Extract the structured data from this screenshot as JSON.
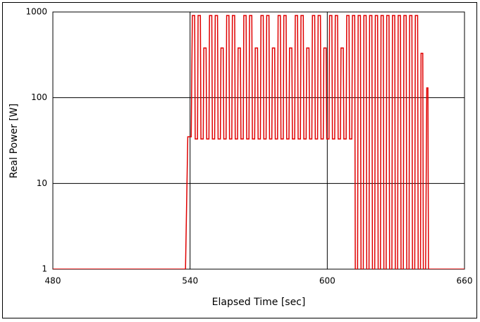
{
  "chart_data": {
    "type": "line",
    "xlabel": "Elapsed Time [sec]",
    "ylabel": "Real Power [W]",
    "xlim": [
      480,
      660
    ],
    "xticks": [
      480,
      540,
      600,
      660
    ],
    "ylim": [
      1,
      1000
    ],
    "yticks": [
      1,
      10,
      100,
      1000
    ],
    "ylog": true,
    "grid": true,
    "series": [
      {
        "color": "#e00000",
        "x": [
          480,
          500,
          520,
          538,
          539,
          540.5,
          541,
          542,
          542.25,
          543.25,
          543.5,
          544.5,
          544.75,
          545.75,
          546,
          547,
          547.25,
          548.25,
          548.5,
          549.5,
          549.75,
          550.75,
          551,
          552,
          552.25,
          553.25,
          553.5,
          554.5,
          554.75,
          555.75,
          556,
          557,
          557.25,
          558.25,
          558.5,
          559.5,
          559.75,
          560.75,
          561,
          562,
          562.25,
          563.25,
          563.5,
          564.5,
          564.75,
          565.75,
          566,
          567,
          567.25,
          568.25,
          568.5,
          569.5,
          569.75,
          570.75,
          571,
          572,
          572.25,
          573.25,
          573.5,
          574.5,
          574.75,
          575.75,
          576,
          577,
          577.25,
          578.25,
          578.5,
          579.5,
          579.75,
          580.75,
          581,
          582,
          582.25,
          583.25,
          583.5,
          584.5,
          584.75,
          585.75,
          586,
          587,
          587.25,
          588.25,
          588.5,
          589.5,
          589.75,
          590.75,
          591,
          592,
          592.25,
          593.25,
          593.5,
          594.5,
          594.75,
          595.75,
          596,
          597,
          597.25,
          598.25,
          598.5,
          599.5,
          599.75,
          600.75,
          601,
          602,
          602.25,
          603.25,
          603.5,
          604.5,
          604.75,
          605.75,
          606,
          607,
          607.25,
          608.25,
          608.5,
          609.5,
          609.75,
          610.75,
          611,
          612,
          612.25,
          613.25,
          613.5,
          614.5,
          614.75,
          615.75,
          616,
          617,
          617.25,
          618.25,
          618.5,
          619.5,
          619.75,
          620.75,
          621,
          622,
          622.25,
          623.25,
          623.5,
          624.5,
          624.75,
          625.75,
          626,
          627,
          627.25,
          628.25,
          628.5,
          629.5,
          629.75,
          630.75,
          631,
          632,
          632.25,
          633.25,
          633.5,
          634.5,
          634.75,
          635.75,
          636,
          637,
          637.25,
          638.25,
          638.5,
          639.5,
          639.75,
          640.75,
          641,
          641.75,
          642,
          643,
          643.5,
          644,
          644.25,
          660
        ],
        "values": [
          1,
          1,
          1,
          1,
          35,
          35,
          910,
          910,
          33,
          33,
          910,
          910,
          33,
          33,
          380,
          380,
          33,
          33,
          910,
          910,
          33,
          33,
          910,
          910,
          33,
          33,
          380,
          380,
          33,
          33,
          910,
          910,
          33,
          33,
          910,
          910,
          33,
          33,
          380,
          380,
          33,
          33,
          910,
          910,
          33,
          33,
          910,
          910,
          33,
          33,
          380,
          380,
          33,
          33,
          910,
          910,
          33,
          33,
          910,
          910,
          33,
          33,
          380,
          380,
          33,
          33,
          910,
          910,
          33,
          33,
          910,
          910,
          33,
          33,
          380,
          380,
          33,
          33,
          910,
          910,
          33,
          33,
          910,
          910,
          33,
          33,
          380,
          380,
          33,
          33,
          910,
          910,
          33,
          33,
          910,
          910,
          33,
          33,
          380,
          380,
          33,
          33,
          910,
          910,
          33,
          33,
          910,
          910,
          33,
          33,
          380,
          380,
          33,
          33,
          910,
          910,
          33,
          33,
          910,
          910,
          1,
          1,
          910,
          910,
          1,
          1,
          910,
          910,
          1,
          1,
          910,
          910,
          1,
          1,
          910,
          910,
          1,
          1,
          910,
          910,
          1,
          1,
          910,
          910,
          1,
          1,
          910,
          910,
          1,
          1,
          910,
          910,
          1,
          1,
          910,
          910,
          1,
          1,
          910,
          910,
          1,
          1,
          910,
          910,
          1,
          1,
          330,
          330,
          1,
          1,
          130,
          130,
          1,
          1
        ]
      }
    ]
  }
}
